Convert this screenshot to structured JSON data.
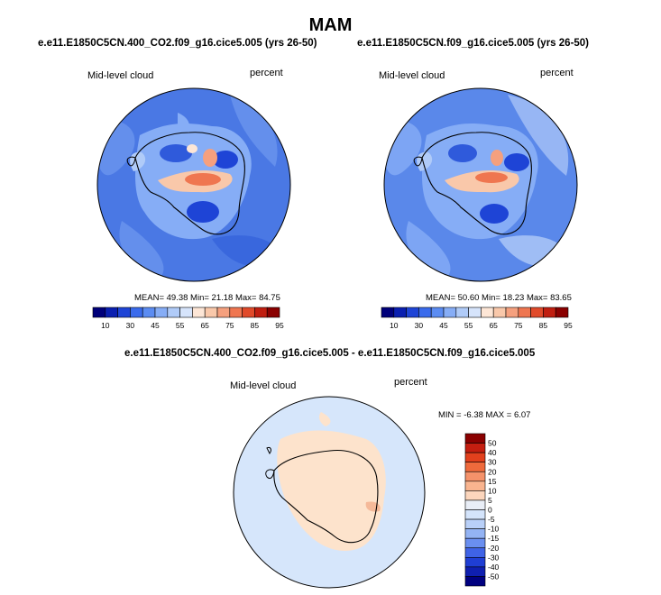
{
  "figure": {
    "title": "MAM",
    "panels": [
      {
        "subtitle": "e.e11.E1850C5CN.400_CO2.f09_g16.cice5.005 (yrs 26-50)",
        "variable": "Mid-level cloud",
        "units": "percent",
        "stats": "MEAN=  49.38  Min=  21.18  Max=  84.75"
      },
      {
        "subtitle": "e.e11.E1850C5CN.f09_g16.cice5.005 (yrs 26-50)",
        "variable": "Mid-level cloud",
        "units": "percent",
        "stats": "MEAN=  50.60  Min=  18.23  Max=  83.65"
      }
    ],
    "diff_panel": {
      "subtitle": "e.e11.E1850C5CN.400_CO2.f09_g16.cice5.005 - e.e11.E1850C5CN.f09_g16.cice5.005",
      "variable": "Mid-level cloud",
      "units": "percent",
      "stats": "MIN =  -6.38 MAX =   6.07"
    }
  },
  "colors": {
    "abs_bar": [
      "#00007a",
      "#0a1fb0",
      "#1e44d6",
      "#3a6bec",
      "#5b8cf2",
      "#86adf6",
      "#b0cbf8",
      "#d6e4fb",
      "#fde6d6",
      "#f9c8aa",
      "#f5a07e",
      "#ef7650",
      "#e04a2a",
      "#c01e10",
      "#8a0000"
    ],
    "diff_bar": [
      "#8a0000",
      "#c41e10",
      "#e2401d",
      "#ef6a3c",
      "#f5926a",
      "#f9b48f",
      "#fcd6bd",
      "#e9eef7",
      "#d4e4fb",
      "#b9d0f8",
      "#93b3f4",
      "#6a8ff0",
      "#3f63e6",
      "#1f3ed4",
      "#0f1fb0",
      "#000080"
    ],
    "ocean_abs": "#4f7fe6",
    "land_abs": "#86adf6",
    "ocean_diff": "#d6e6fb",
    "land_diff": "#fde3cc"
  },
  "chart_data": {
    "type": "heatmap",
    "abs_levels": [
      "10",
      "30",
      "45",
      "55",
      "65",
      "75",
      "85",
      "95"
    ],
    "abs_level_values": [
      10,
      15,
      20,
      25,
      30,
      35,
      40,
      45,
      50,
      55,
      60,
      65,
      70,
      75,
      80,
      85,
      90,
      95
    ],
    "diff_levels": [
      "50",
      "40",
      "30",
      "20",
      "15",
      "10",
      "5",
      "0",
      "-5",
      "-10",
      "-15",
      "-20",
      "-30",
      "-40",
      "-50"
    ],
    "panel_means": [
      49.38,
      50.6
    ],
    "panel_mins": [
      21.18,
      18.23
    ],
    "panel_maxs": [
      84.75,
      83.65
    ],
    "diff_min": -6.38,
    "diff_max": 6.07
  }
}
